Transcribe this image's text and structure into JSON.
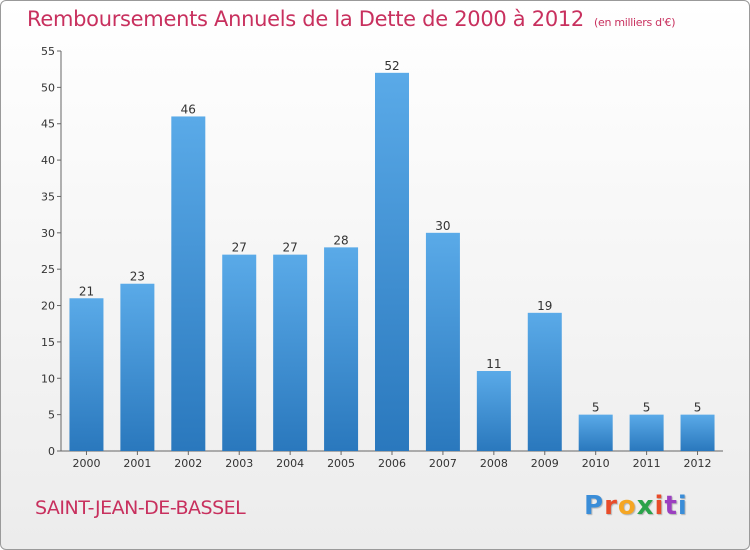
{
  "header": {
    "title": "Remboursements Annuels de la Dette de 2000 à 2012",
    "subtitle": "(en milliers d'€)"
  },
  "footer": {
    "commune": "SAINT-JEAN-DE-BASSEL",
    "logo": [
      "P",
      "r",
      "o",
      "x",
      "i",
      "t",
      "i"
    ],
    "logo_colors": [
      "#3a8dd8",
      "#e84c2a",
      "#f5a623",
      "#2aa34a",
      "#e84c2a",
      "#9b3fc0",
      "#3a8dd8"
    ]
  },
  "chart_data": {
    "type": "bar",
    "title": "Remboursements Annuels de la Dette de 2000 à 2012",
    "categories": [
      "2000",
      "2001",
      "2002",
      "2003",
      "2004",
      "2005",
      "2006",
      "2007",
      "2008",
      "2009",
      "2010",
      "2011",
      "2012"
    ],
    "values": [
      21,
      23,
      46,
      27,
      27,
      28,
      52,
      30,
      11,
      19,
      5,
      5,
      5
    ],
    "ylim": [
      0,
      55
    ],
    "yticks": [
      0,
      5,
      10,
      15,
      20,
      25,
      30,
      35,
      40,
      45,
      50,
      55
    ],
    "grid": false,
    "bar_color_top": "#5aaae8",
    "bar_color_bottom": "#2a78bd"
  }
}
